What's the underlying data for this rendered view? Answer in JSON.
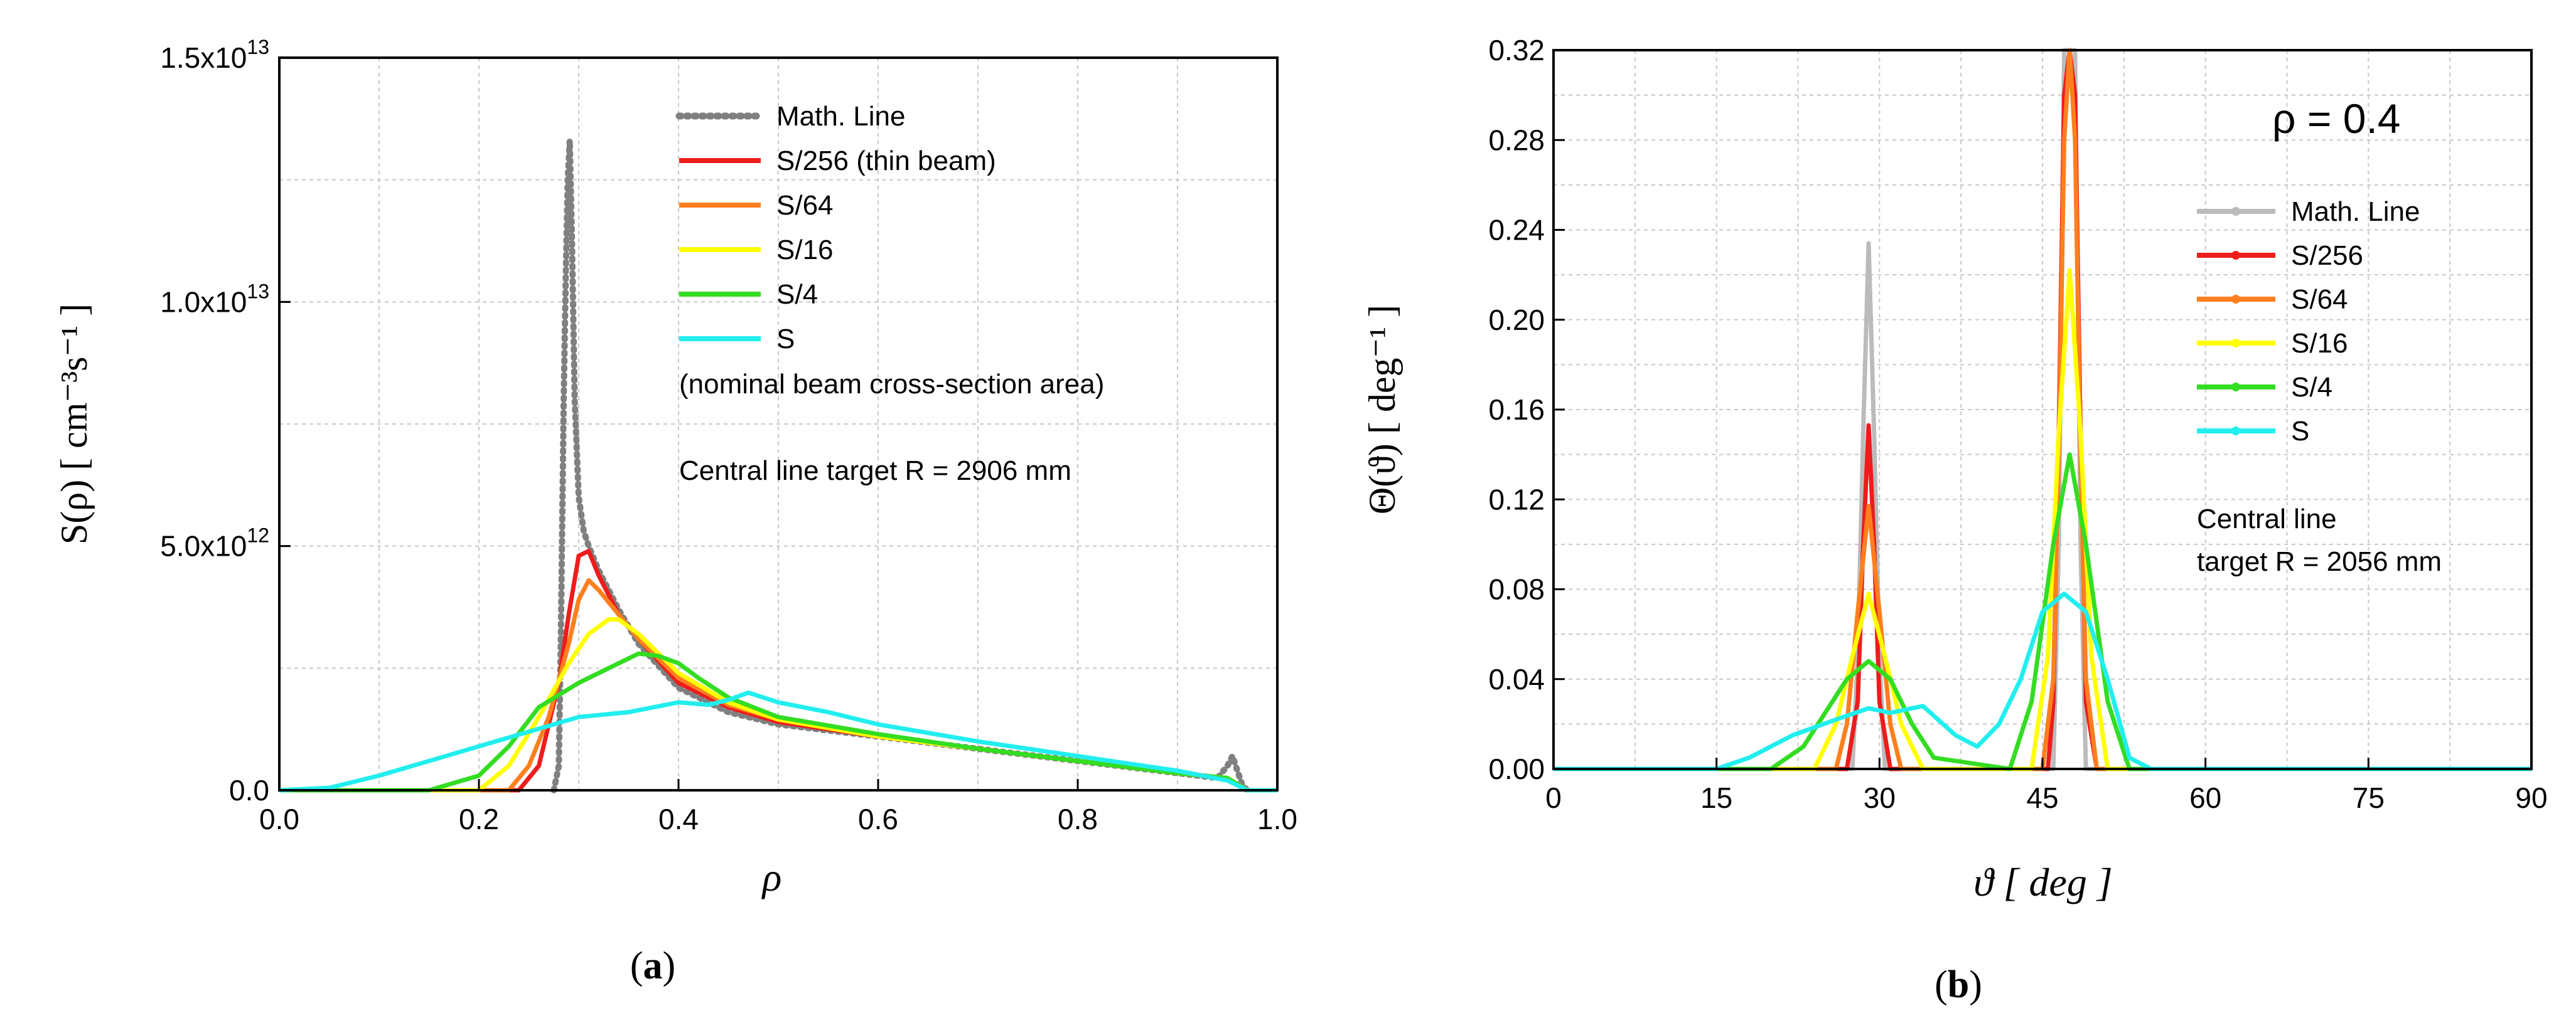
{
  "chart_data": [
    {
      "type": "line",
      "panel": "a",
      "caption_letter": "a",
      "xlabel": "ρ",
      "ylabel": "S(ρ) [ cm⁻³s⁻¹ ]",
      "xlim": [
        0,
        1
      ],
      "ylim": [
        0,
        15
      ],
      "y_unit_note": "×10¹²",
      "x_ticks": [
        "0.0",
        "0.2",
        "0.4",
        "0.6",
        "0.8",
        "1.0"
      ],
      "y_ticks": [
        {
          "base": "0.0",
          "exp": ""
        },
        {
          "base": "5.0x10",
          "exp": "12"
        },
        {
          "base": "1.0x10",
          "exp": "13"
        },
        {
          "base": "1.5x10",
          "exp": "13"
        }
      ],
      "grid": true,
      "legend_position": "top-right",
      "annotations": [
        "(nominal beam cross-section area)",
        "Central line target R = 2906 mm"
      ],
      "series": [
        {
          "name": "Math. Line",
          "color": "#808080",
          "style": "dotted",
          "x": [
            0.275,
            0.28,
            0.282,
            0.285,
            0.287,
            0.289,
            0.291,
            0.293,
            0.296,
            0.3,
            0.305,
            0.31,
            0.32,
            0.34,
            0.36,
            0.4,
            0.45,
            0.5,
            0.6,
            0.7,
            0.8,
            0.9,
            0.94,
            0.95,
            0.955,
            0.96,
            0.965,
            0.97
          ],
          "y": [
            0,
            0.5,
            3,
            8,
            10.5,
            12.5,
            13.3,
            11.5,
            8,
            6,
            5.3,
            5.0,
            4.5,
            3.7,
            3.0,
            2.1,
            1.6,
            1.35,
            1.1,
            0.85,
            0.6,
            0.35,
            0.25,
            0.5,
            0.7,
            0.4,
            0.1,
            0
          ]
        },
        {
          "name": "S/256 (thin beam)",
          "color": "#ee1c1c",
          "style": "solid",
          "x": [
            0,
            0.24,
            0.26,
            0.28,
            0.29,
            0.3,
            0.31,
            0.32,
            0.34,
            0.36,
            0.4,
            0.45,
            0.5,
            0.6,
            0.7,
            0.8,
            0.9,
            0.95,
            0.97,
            1.0
          ],
          "y": [
            0,
            0,
            0.5,
            2.2,
            3.6,
            4.8,
            4.9,
            4.4,
            3.6,
            3.1,
            2.2,
            1.7,
            1.4,
            1.1,
            0.85,
            0.6,
            0.35,
            0.25,
            0,
            0
          ]
        },
        {
          "name": "S/64",
          "color": "#ff7f1e",
          "style": "solid",
          "x": [
            0,
            0.23,
            0.25,
            0.27,
            0.29,
            0.3,
            0.31,
            0.32,
            0.34,
            0.36,
            0.4,
            0.45,
            0.5,
            0.6,
            0.7,
            0.8,
            0.9,
            0.95,
            0.97,
            1.0
          ],
          "y": [
            0,
            0,
            0.5,
            1.5,
            3.0,
            3.9,
            4.3,
            4.1,
            3.6,
            3.1,
            2.3,
            1.75,
            1.45,
            1.1,
            0.85,
            0.6,
            0.35,
            0.25,
            0,
            0
          ]
        },
        {
          "name": "S/16",
          "color": "#ffff00",
          "style": "solid",
          "x": [
            0,
            0.2,
            0.23,
            0.26,
            0.29,
            0.31,
            0.33,
            0.34,
            0.36,
            0.38,
            0.4,
            0.45,
            0.5,
            0.6,
            0.7,
            0.8,
            0.9,
            0.95,
            0.97,
            1.0
          ],
          "y": [
            0,
            0,
            0.5,
            1.5,
            2.6,
            3.2,
            3.5,
            3.5,
            3.2,
            2.8,
            2.4,
            1.8,
            1.45,
            1.1,
            0.85,
            0.6,
            0.35,
            0.25,
            0,
            0
          ]
        },
        {
          "name": "S/4",
          "color": "#33dd22",
          "style": "solid",
          "x": [
            0,
            0.15,
            0.2,
            0.23,
            0.26,
            0.3,
            0.33,
            0.36,
            0.38,
            0.4,
            0.42,
            0.45,
            0.5,
            0.6,
            0.7,
            0.8,
            0.9,
            0.95,
            0.97,
            1.0
          ],
          "y": [
            0,
            0,
            0.3,
            0.9,
            1.7,
            2.2,
            2.5,
            2.8,
            2.75,
            2.6,
            2.3,
            1.9,
            1.5,
            1.15,
            0.85,
            0.6,
            0.35,
            0.25,
            0,
            0
          ]
        },
        {
          "name": "S",
          "color": "#22eeee",
          "style": "solid",
          "x": [
            0,
            0.05,
            0.1,
            0.15,
            0.2,
            0.25,
            0.3,
            0.35,
            0.4,
            0.43,
            0.45,
            0.47,
            0.5,
            0.55,
            0.6,
            0.7,
            0.8,
            0.9,
            0.95,
            0.97,
            1.0
          ],
          "y": [
            0,
            0.05,
            0.3,
            0.6,
            0.9,
            1.2,
            1.5,
            1.6,
            1.8,
            1.75,
            1.85,
            2.0,
            1.8,
            1.6,
            1.35,
            1.0,
            0.7,
            0.4,
            0.2,
            0,
            0
          ]
        }
      ]
    },
    {
      "type": "line",
      "panel": "b",
      "caption_letter": "b",
      "xlabel": "ϑ [ deg ]",
      "ylabel": "Θ(ϑ) [ deg⁻¹ ]",
      "xlim": [
        0,
        90
      ],
      "ylim": [
        0,
        0.32
      ],
      "x_ticks": [
        "0",
        "15",
        "30",
        "45",
        "60",
        "75",
        "90"
      ],
      "y_ticks": [
        "0.00",
        "0.04",
        "0.08",
        "0.12",
        "0.16",
        "0.20",
        "0.24",
        "0.28",
        "0.32"
      ],
      "grid": true,
      "legend_position": "right",
      "annotations": [
        "ρ = 0.4",
        "Central line",
        "target R = 2056 mm"
      ],
      "series": [
        {
          "name": "Math. Line",
          "color": "#bbbbbb",
          "style": "solid",
          "x": [
            0,
            27.5,
            28,
            28.5,
            29,
            29.5,
            30,
            30.5,
            46,
            46.5,
            47,
            47.5,
            48,
            48.5,
            49,
            90
          ],
          "y": [
            0,
            0,
            0.05,
            0.15,
            0.234,
            0.15,
            0.05,
            0,
            0,
            0.1,
            0.32,
            0.32,
            0.32,
            0.1,
            0,
            0
          ]
        },
        {
          "name": "S/256",
          "color": "#ee1c1c",
          "style": "solid",
          "x": [
            0,
            27,
            28,
            28.5,
            29,
            29.5,
            30,
            31,
            45.5,
            46,
            46.5,
            47,
            47.5,
            48,
            48.5,
            49,
            50,
            90
          ],
          "y": [
            0,
            0,
            0.03,
            0.1,
            0.153,
            0.1,
            0.03,
            0,
            0,
            0.03,
            0.15,
            0.3,
            0.32,
            0.3,
            0.15,
            0.03,
            0,
            0
          ]
        },
        {
          "name": "S/64",
          "color": "#ff7f1e",
          "style": "solid",
          "x": [
            0,
            26,
            27,
            28,
            29,
            30,
            31,
            32,
            45,
            46,
            46.5,
            47,
            47.5,
            48,
            48.5,
            49,
            50,
            90
          ],
          "y": [
            0,
            0,
            0.02,
            0.07,
            0.117,
            0.07,
            0.02,
            0,
            0,
            0.04,
            0.14,
            0.28,
            0.32,
            0.28,
            0.14,
            0.04,
            0,
            0
          ]
        },
        {
          "name": "S/16",
          "color": "#ffff00",
          "style": "solid",
          "x": [
            0,
            24,
            26,
            27.5,
            29,
            30.5,
            32,
            34,
            44,
            45.5,
            46.5,
            47.5,
            48.5,
            49.5,
            51,
            90
          ],
          "y": [
            0,
            0,
            0.02,
            0.05,
            0.078,
            0.05,
            0.02,
            0,
            0,
            0.05,
            0.15,
            0.222,
            0.15,
            0.05,
            0,
            0
          ]
        },
        {
          "name": "S/4",
          "color": "#33dd22",
          "style": "solid",
          "x": [
            0,
            20,
            23,
            25,
            27,
            29,
            31,
            33,
            35,
            42,
            44,
            46,
            47.5,
            49,
            51,
            53,
            90
          ],
          "y": [
            0,
            0,
            0.01,
            0.025,
            0.04,
            0.048,
            0.04,
            0.02,
            0.005,
            0,
            0.03,
            0.1,
            0.14,
            0.1,
            0.03,
            0,
            0
          ]
        },
        {
          "name": "S",
          "color": "#22eeee",
          "style": "solid",
          "x": [
            0,
            15,
            18,
            22,
            26,
            29,
            31,
            34,
            37,
            39,
            41,
            43,
            45,
            47,
            49,
            51,
            53,
            55,
            90
          ],
          "y": [
            0,
            0,
            0.005,
            0.015,
            0.022,
            0.027,
            0.025,
            0.028,
            0.015,
            0.01,
            0.02,
            0.04,
            0.07,
            0.078,
            0.07,
            0.04,
            0.005,
            0,
            0
          ]
        }
      ]
    }
  ]
}
